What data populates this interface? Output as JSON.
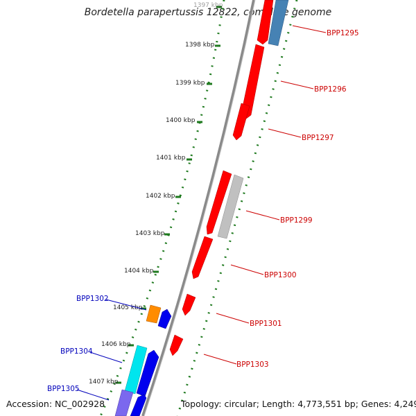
{
  "title": "Bordetella parapertussis 12822, complete genome",
  "footer": {
    "accession": "Accession: NC_002928",
    "summary": "Topology: circular; Length: 4,773,551 bp; Genes: 4,249"
  },
  "colors": {
    "backbone": "#808080",
    "tick_ring": "#1f7a1f",
    "label_red": "#cc0000",
    "label_blue": "#0000bb",
    "gene_red": "#ff0000",
    "gene_grey": "#c0c0c0",
    "gene_steelblue": "#4682b4",
    "gene_blue": "#0000ee",
    "gene_orange": "#ff8c00",
    "gene_cyan": "#00e5ee",
    "gene_purple": "#7b68ee"
  },
  "scale": {
    "labels": [
      "1397 kbp",
      "1398 kbp",
      "1399 kbp",
      "1400 kbp",
      "1401 kbp",
      "1402 kbp",
      "1403 kbp",
      "1404 kbp",
      "1405 kbp",
      "1406 kbp",
      "1407 kbp"
    ]
  },
  "gene_labels": [
    {
      "text": "BPP1295",
      "side": "right"
    },
    {
      "text": "BPP1296",
      "side": "right"
    },
    {
      "text": "BPP1297",
      "side": "right"
    },
    {
      "text": "BPP1299",
      "side": "right"
    },
    {
      "text": "BPP1300",
      "side": "right"
    },
    {
      "text": "BPP1301",
      "side": "right"
    },
    {
      "text": "BPP1303",
      "side": "right"
    },
    {
      "text": "BPP1302",
      "side": "left"
    },
    {
      "text": "BPP1304",
      "side": "left"
    },
    {
      "text": "BPP1305",
      "side": "left"
    }
  ]
}
